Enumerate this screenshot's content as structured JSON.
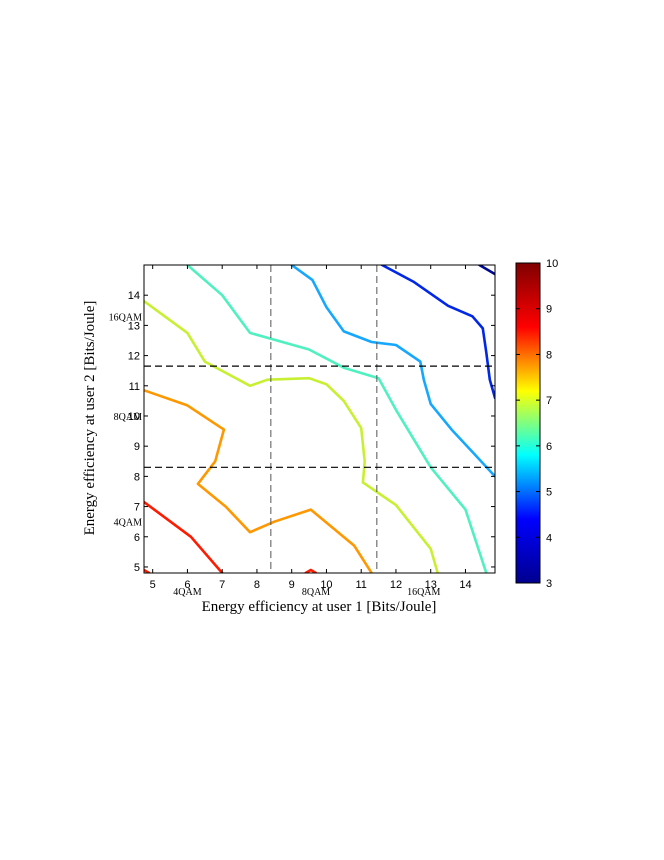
{
  "chart_data": {
    "type": "contour",
    "xlabel": "Energy efficiency at user 1 [Bits/Joule]",
    "ylabel": "Energy efficiency at user 2 [Bits/Joule]",
    "xlim": [
      4.75,
      14.85
    ],
    "ylim": [
      4.8,
      15.0
    ],
    "x_ticks": [
      5,
      6,
      7,
      8,
      9,
      10,
      11,
      12,
      13,
      14
    ],
    "y_ticks": [
      5,
      6,
      7,
      8,
      9,
      10,
      11,
      12,
      13,
      14
    ],
    "grid": false,
    "colorbar": {
      "min": 3,
      "max": 10,
      "ticks": [
        3,
        4,
        5,
        6,
        7,
        8,
        9,
        10
      ],
      "colormap": [
        "#00008f",
        "#0000ff",
        "#00ffff",
        "#ffff00",
        "#ff0000",
        "#800000"
      ]
    },
    "modulation_boundaries": {
      "x": [
        8.4,
        11.45
      ],
      "y": [
        8.3,
        11.65
      ]
    },
    "modulation_labels": {
      "x": [
        {
          "text": "4QAM",
          "x": 6.0
        },
        {
          "text": "8QAM",
          "x": 9.7
        },
        {
          "text": "16QAM",
          "x": 12.8
        }
      ],
      "y": [
        {
          "text": "4QAM",
          "y": 6.5
        },
        {
          "text": "8QAM",
          "y": 10.0
        },
        {
          "text": "16QAM",
          "y": 13.3
        }
      ]
    },
    "contours": [
      {
        "level": 9.5,
        "color": "#ff1a00",
        "points": [
          [
            4.75,
            7.15
          ],
          [
            6.1,
            6.0
          ],
          [
            7.0,
            4.8
          ]
        ]
      },
      {
        "level": 9.5,
        "color": "#ff1a00",
        "points": [
          [
            4.75,
            4.9
          ],
          [
            4.9,
            4.8
          ]
        ]
      },
      {
        "level": 9.5,
        "color": "#ff1a00",
        "points": [
          [
            9.4,
            4.8
          ],
          [
            9.55,
            4.9
          ],
          [
            9.7,
            4.8
          ]
        ]
      },
      {
        "level": 8.0,
        "color": "#ff9800",
        "points": [
          [
            4.75,
            10.85
          ],
          [
            6.0,
            10.35
          ],
          [
            7.05,
            9.55
          ],
          [
            6.8,
            8.5
          ],
          [
            6.3,
            7.75
          ],
          [
            7.1,
            7.0
          ],
          [
            7.8,
            6.15
          ],
          [
            8.5,
            6.5
          ],
          [
            9.55,
            6.9
          ],
          [
            10.8,
            5.7
          ],
          [
            11.3,
            4.8
          ]
        ]
      },
      {
        "level": 6.8,
        "color": "#c8f032",
        "points": [
          [
            4.75,
            13.8
          ],
          [
            6.0,
            12.75
          ],
          [
            6.5,
            11.8
          ],
          [
            7.8,
            11.0
          ],
          [
            8.3,
            11.2
          ],
          [
            9.5,
            11.25
          ],
          [
            10.0,
            11.05
          ],
          [
            10.5,
            10.5
          ],
          [
            11.0,
            9.6
          ],
          [
            11.1,
            8.5
          ],
          [
            11.05,
            7.8
          ],
          [
            12.0,
            7.05
          ],
          [
            13.0,
            5.6
          ],
          [
            13.2,
            4.8
          ]
        ]
      },
      {
        "level": 5.8,
        "color": "#50f0c0",
        "points": [
          [
            6.0,
            15.0
          ],
          [
            7.0,
            14.0
          ],
          [
            7.8,
            12.75
          ],
          [
            9.5,
            12.2
          ],
          [
            10.5,
            11.6
          ],
          [
            11.5,
            11.25
          ],
          [
            12.0,
            10.2
          ],
          [
            13.0,
            8.3
          ],
          [
            14.0,
            6.9
          ],
          [
            14.6,
            4.8
          ]
        ]
      },
      {
        "level": 4.8,
        "color": "#16a8ff",
        "points": [
          [
            9.0,
            15.0
          ],
          [
            9.6,
            14.5
          ],
          [
            10.0,
            13.6
          ],
          [
            10.5,
            12.8
          ],
          [
            11.3,
            12.45
          ],
          [
            12.0,
            12.35
          ],
          [
            12.7,
            11.8
          ],
          [
            12.8,
            11.2
          ],
          [
            13.0,
            10.4
          ],
          [
            13.6,
            9.55
          ],
          [
            14.25,
            8.75
          ],
          [
            14.85,
            8.0
          ]
        ]
      },
      {
        "level": 3.8,
        "color": "#0028e6",
        "points": [
          [
            11.6,
            15.0
          ],
          [
            12.5,
            14.45
          ],
          [
            13.5,
            13.65
          ],
          [
            14.2,
            13.3
          ],
          [
            14.5,
            12.9
          ],
          [
            14.6,
            12.1
          ],
          [
            14.7,
            11.2
          ],
          [
            14.85,
            10.6
          ]
        ]
      },
      {
        "level": 3.3,
        "color": "#000a8c",
        "points": [
          [
            14.4,
            15.0
          ],
          [
            14.85,
            14.7
          ]
        ]
      }
    ]
  }
}
